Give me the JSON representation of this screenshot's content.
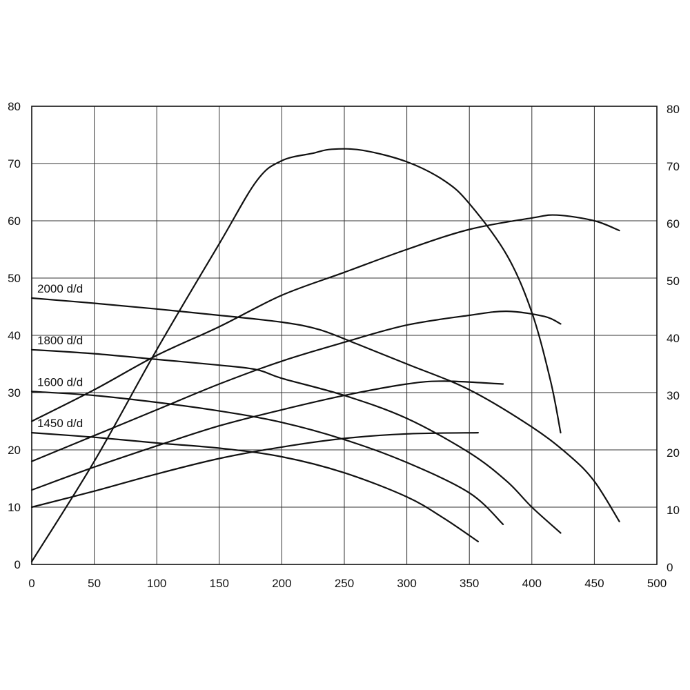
{
  "chart_data": {
    "type": "line",
    "title": "",
    "xlabel": "",
    "ylabel": "",
    "xlim": [
      0,
      500
    ],
    "ylim": [
      0,
      80
    ],
    "y2lim": [
      0,
      80
    ],
    "grid": true,
    "x_ticks": [
      "0",
      "50",
      "100",
      "150",
      "200",
      "250",
      "300",
      "350",
      "400",
      "450",
      "500"
    ],
    "y_ticks": [
      "0",
      "10",
      "20",
      "30",
      "40",
      "50",
      "60",
      "70",
      "80"
    ],
    "y2_ticks": [
      "0",
      "10",
      "20",
      "30",
      "40",
      "50",
      "60",
      "70",
      "80"
    ],
    "series": [
      {
        "group": "decreasing",
        "name": "2000 d/d",
        "points": [
          [
            0,
            46.5
          ],
          [
            50,
            45.6
          ],
          [
            100,
            44.6
          ],
          [
            150,
            43.5
          ],
          [
            200,
            42.3
          ],
          [
            230,
            41.0
          ],
          [
            260,
            38.5
          ],
          [
            300,
            35.0
          ],
          [
            350,
            30.5
          ],
          [
            400,
            24.0
          ],
          [
            430,
            19.0
          ],
          [
            450,
            14.5
          ],
          [
            470,
            7.5
          ]
        ]
      },
      {
        "group": "decreasing",
        "name": "1800 d/d",
        "points": [
          [
            0,
            37.5
          ],
          [
            50,
            36.8
          ],
          [
            100,
            35.8
          ],
          [
            150,
            34.8
          ],
          [
            180,
            34.0
          ],
          [
            200,
            32.5
          ],
          [
            250,
            29.5
          ],
          [
            300,
            25.5
          ],
          [
            350,
            19.5
          ],
          [
            380,
            14.5
          ],
          [
            400,
            10.0
          ],
          [
            423,
            5.5
          ]
        ]
      },
      {
        "group": "decreasing",
        "name": "1600 d/d",
        "points": [
          [
            0,
            30.2
          ],
          [
            50,
            29.5
          ],
          [
            100,
            28.3
          ],
          [
            150,
            26.8
          ],
          [
            200,
            24.8
          ],
          [
            250,
            21.8
          ],
          [
            300,
            17.8
          ],
          [
            350,
            12.5
          ],
          [
            377,
            7.0
          ]
        ]
      },
      {
        "group": "decreasing",
        "name": "1450 d/d",
        "points": [
          [
            0,
            23.0
          ],
          [
            50,
            22.2
          ],
          [
            100,
            21.2
          ],
          [
            150,
            20.3
          ],
          [
            200,
            18.8
          ],
          [
            250,
            16.0
          ],
          [
            300,
            11.8
          ],
          [
            330,
            8.0
          ],
          [
            357,
            4.0
          ]
        ]
      },
      {
        "group": "rising",
        "name": "",
        "points": [
          [
            0,
            25.0
          ],
          [
            50,
            30.5
          ],
          [
            100,
            36.5
          ],
          [
            150,
            41.5
          ],
          [
            200,
            47.0
          ],
          [
            250,
            51.0
          ],
          [
            300,
            55.0
          ],
          [
            350,
            58.5
          ],
          [
            400,
            60.5
          ],
          [
            420,
            61.0
          ],
          [
            450,
            60.0
          ],
          [
            470,
            58.3
          ]
        ]
      },
      {
        "group": "rising",
        "name": "",
        "points": [
          [
            0,
            18.0
          ],
          [
            50,
            22.5
          ],
          [
            100,
            27.0
          ],
          [
            150,
            31.5
          ],
          [
            200,
            35.5
          ],
          [
            250,
            38.8
          ],
          [
            300,
            41.8
          ],
          [
            350,
            43.5
          ],
          [
            380,
            44.2
          ],
          [
            410,
            43.3
          ],
          [
            423,
            42.0
          ]
        ]
      },
      {
        "group": "rising",
        "name": "",
        "points": [
          [
            0,
            13.0
          ],
          [
            50,
            17.0
          ],
          [
            100,
            20.7
          ],
          [
            150,
            24.2
          ],
          [
            200,
            27.0
          ],
          [
            250,
            29.5
          ],
          [
            300,
            31.5
          ],
          [
            330,
            32.0
          ],
          [
            377,
            31.5
          ]
        ]
      },
      {
        "group": "rising",
        "name": "",
        "points": [
          [
            0,
            10.0
          ],
          [
            50,
            12.8
          ],
          [
            100,
            15.8
          ],
          [
            150,
            18.5
          ],
          [
            200,
            20.5
          ],
          [
            250,
            22.0
          ],
          [
            300,
            22.8
          ],
          [
            357,
            23.0
          ]
        ]
      },
      {
        "group": "peak",
        "name": "",
        "points": [
          [
            0,
            0.5
          ],
          [
            50,
            18.0
          ],
          [
            100,
            37.5
          ],
          [
            150,
            56.0
          ],
          [
            180,
            67.0
          ],
          [
            200,
            70.5
          ],
          [
            225,
            71.8
          ],
          [
            240,
            72.5
          ],
          [
            265,
            72.3
          ],
          [
            300,
            70.3
          ],
          [
            330,
            67.0
          ],
          [
            350,
            63.0
          ],
          [
            380,
            54.0
          ],
          [
            400,
            44.0
          ],
          [
            415,
            32.0
          ],
          [
            423,
            23.0
          ]
        ]
      }
    ]
  }
}
